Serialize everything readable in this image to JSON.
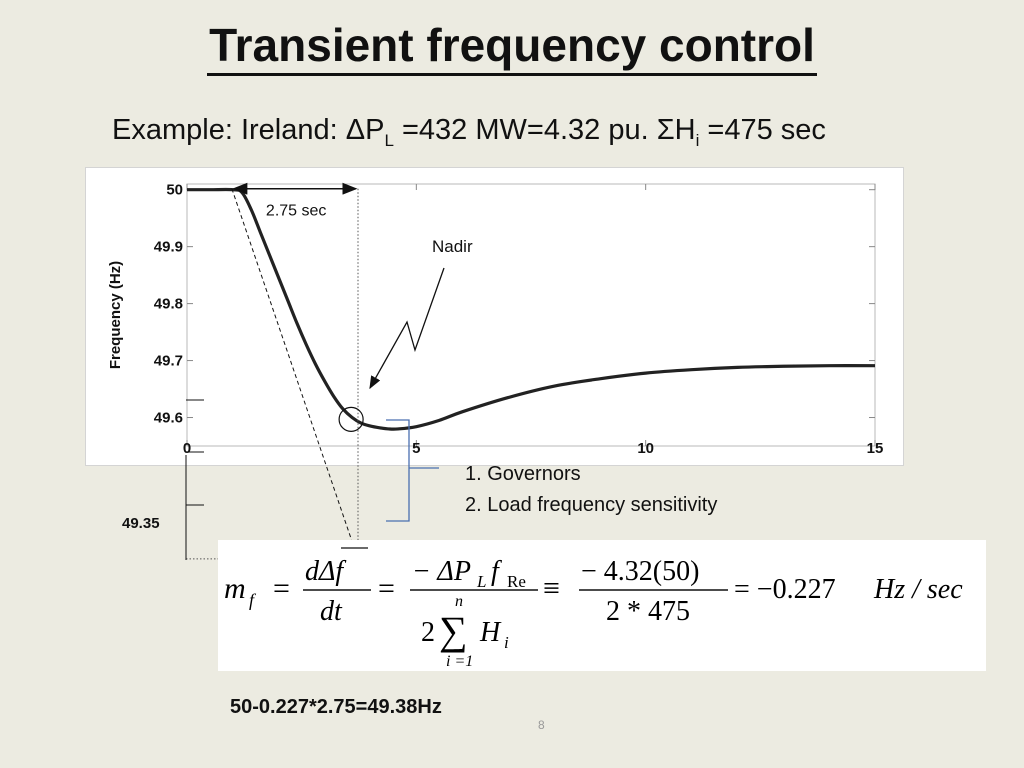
{
  "slide": {
    "title": "Transient frequency control",
    "example_prefix": "Example: Ireland: ",
    "delta_p_symbol": "ΔP",
    "delta_p_sub": "L",
    "delta_p_rest": " =432 MW=4.32 pu. ",
    "sigma_h_symbol": "ΣH",
    "sigma_h_sub": "i",
    "sigma_h_rest": " =475 sec",
    "legend_items": [
      "1. Governors",
      "2. Load frequency sensitivity"
    ],
    "low_label": "49.35",
    "result_text": "50-0.227*2.75=49.38Hz",
    "page_number": "8"
  },
  "formula": {
    "lhs": "m",
    "lhs_sub": "f",
    "t1_num": "dΔf",
    "t1_den": "dt",
    "t2_num": "− ΔP",
    "t2_num_sub1": "L",
    "t2_num_f": "f",
    "t2_num_sub2": "Re",
    "t2_den_2": "2",
    "t2_den_sum": "∑",
    "t2_den_top": "n",
    "t2_den_bot": "i =1",
    "t2_den_H": "H",
    "t2_den_Hsub": "i",
    "t3_num": "− 4.32(50)",
    "t3_den": "2 * 475",
    "result": "= −0.227",
    "result_unit": "Hz / sec",
    "eq1": "=",
    "eq2": "=",
    "eq3": "≡"
  },
  "chart_data": {
    "type": "line",
    "title": "",
    "xlabel": "",
    "ylabel": "Frequency (Hz)",
    "xlim": [
      0,
      15
    ],
    "ylim": [
      49.55,
      50.01
    ],
    "x_ticks": [
      0,
      5,
      10,
      15
    ],
    "x_tick_labels": [
      "0",
      "5",
      "10",
      "15"
    ],
    "y_ticks": [
      49.6,
      49.7,
      49.8,
      49.9,
      50
    ],
    "y_tick_labels": [
      "49.6",
      "49.7",
      "49.8",
      "49.9",
      "50"
    ],
    "grid": false,
    "series": [
      {
        "color": "#222222",
        "x": [
          0,
          0.5,
          1.0,
          1.2,
          1.4,
          1.6,
          1.8,
          2.0,
          2.2,
          2.4,
          2.6,
          2.8,
          3.0,
          3.2,
          3.4,
          3.6,
          3.8,
          4.0,
          4.2,
          4.4,
          4.6,
          5.0,
          5.5,
          6.0,
          7.0,
          8.0,
          9.0,
          10.0,
          11.0,
          12.0,
          13.0,
          14.0,
          15.0
        ],
        "y": [
          50.0,
          50.0,
          50.0,
          49.995,
          49.965,
          49.925,
          49.885,
          49.845,
          49.805,
          49.765,
          49.728,
          49.694,
          49.664,
          49.637,
          49.615,
          49.6,
          49.59,
          49.585,
          49.582,
          49.58,
          49.58,
          49.584,
          49.595,
          49.61,
          49.635,
          49.655,
          49.668,
          49.678,
          49.684,
          49.688,
          49.69,
          49.691,
          49.691
        ]
      }
    ],
    "annotations": [
      {
        "text": "2.75 sec",
        "type": "interval",
        "x_start": 1.0,
        "x_end": 3.75,
        "y": 50.0
      },
      {
        "text": "Nadir",
        "type": "arrow",
        "x": 3.6,
        "y": 49.595
      },
      {
        "type": "tangent",
        "x_start": 1.0,
        "y_start": 50.0,
        "x_end": 3.75,
        "y_end": 49.35
      }
    ]
  }
}
